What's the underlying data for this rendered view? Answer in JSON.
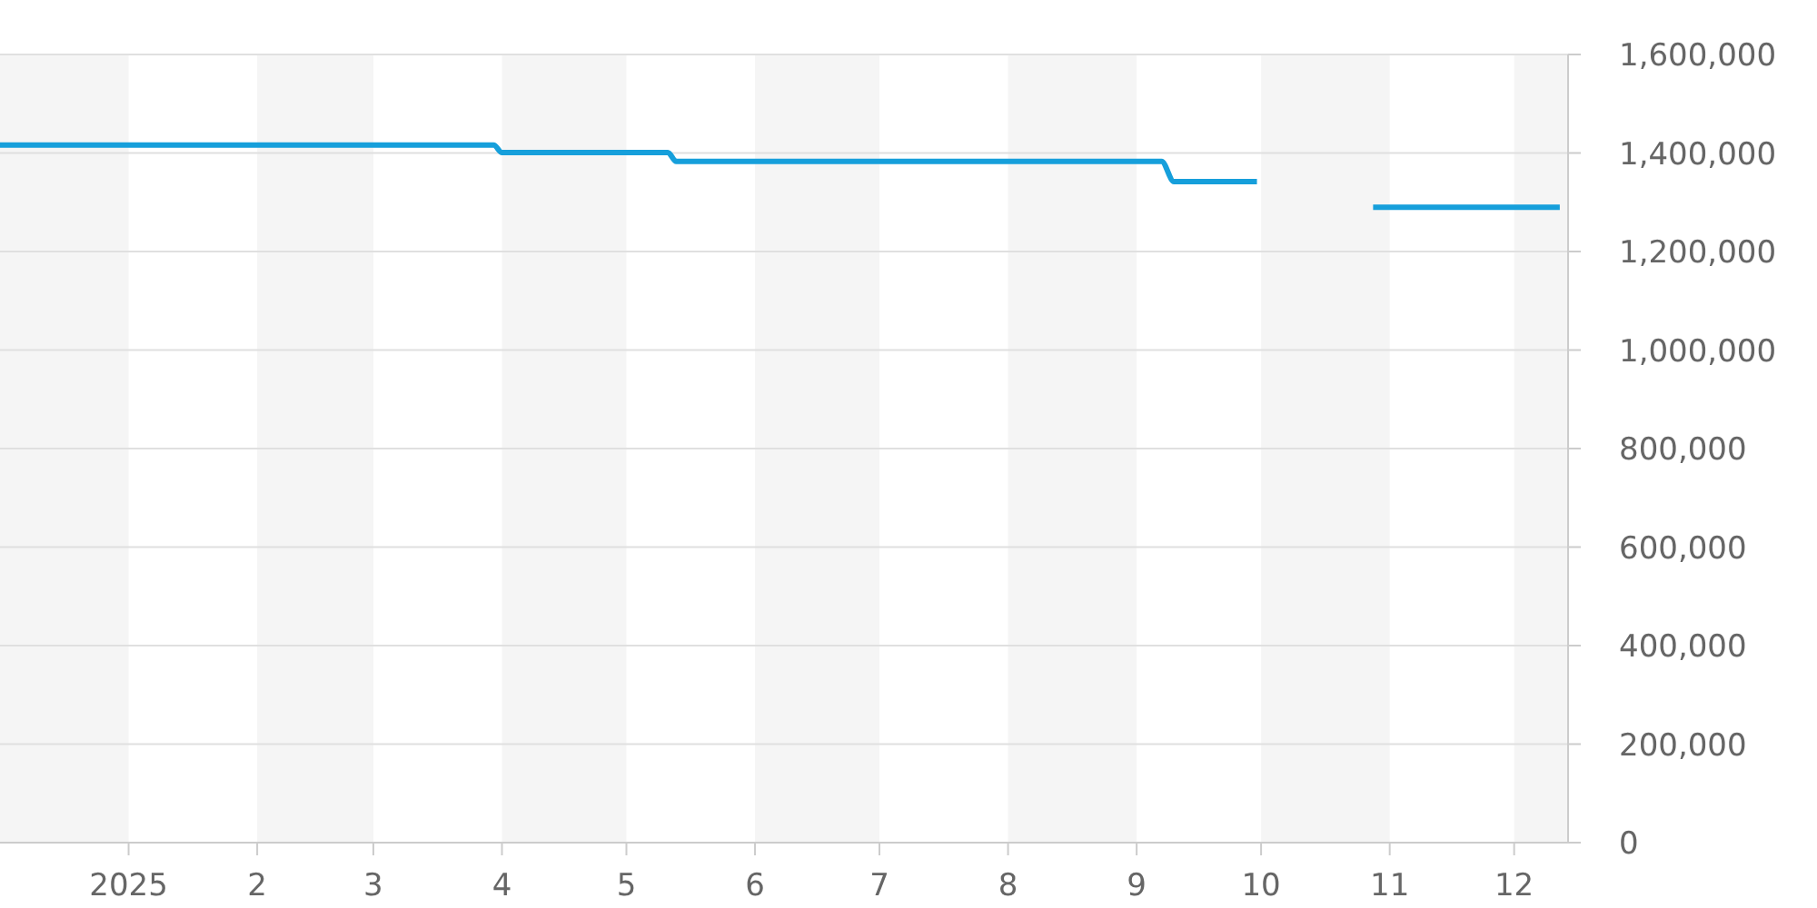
{
  "chart_data": {
    "type": "line",
    "x": [
      "2024-12-01",
      "2025-03-30",
      "2025-04-01",
      "2025-05-11",
      "2025-05-13",
      "2025-09-07",
      "2025-09-10",
      "2025-09-30",
      "2025-10-15",
      "2025-10-28",
      "2025-12-12"
    ],
    "series": [
      {
        "color": "#169fdb",
        "values": [
          1416000,
          1416000,
          1401000,
          1401000,
          1383000,
          1383000,
          1342000,
          1342000,
          null,
          1290000,
          1290000
        ]
      }
    ],
    "xlim": [
      "2024-12-01",
      "2025-12-14"
    ],
    "xticks": [
      {
        "value": "2025-01-01",
        "label": "2025"
      },
      {
        "value": "2025-02-01",
        "label": "2"
      },
      {
        "value": "2025-03-01",
        "label": "3"
      },
      {
        "value": "2025-04-01",
        "label": "4"
      },
      {
        "value": "2025-05-01",
        "label": "5"
      },
      {
        "value": "2025-06-01",
        "label": "6"
      },
      {
        "value": "2025-07-01",
        "label": "7"
      },
      {
        "value": "2025-08-01",
        "label": "8"
      },
      {
        "value": "2025-09-01",
        "label": "9"
      },
      {
        "value": "2025-10-01",
        "label": "10"
      },
      {
        "value": "2025-11-01",
        "label": "11"
      },
      {
        "value": "2025-12-01",
        "label": "12"
      }
    ],
    "ylim": [
      0,
      1600000
    ],
    "yticks": [
      {
        "value": 0,
        "label": "0"
      },
      {
        "value": 200000,
        "label": "200,000"
      },
      {
        "value": 400000,
        "label": "400,000"
      },
      {
        "value": 600000,
        "label": "600,000"
      },
      {
        "value": 800000,
        "label": "800,000"
      },
      {
        "value": 1000000,
        "label": "1,000,000"
      },
      {
        "value": 1200000,
        "label": "1,200,000"
      },
      {
        "value": 1400000,
        "label": "1,400,000"
      },
      {
        "value": 1600000,
        "label": "1,600,000"
      }
    ],
    "grid": "y",
    "marker": "none",
    "line_style": "solid",
    "bands": [
      {
        "axis": "x",
        "from": "2024-12-01",
        "to": "2025-01-01",
        "color": "#f5f5f5"
      },
      {
        "axis": "x",
        "from": "2025-02-01",
        "to": "2025-03-01",
        "color": "#f5f5f5"
      },
      {
        "axis": "x",
        "from": "2025-04-01",
        "to": "2025-05-01",
        "color": "#f5f5f5"
      },
      {
        "axis": "x",
        "from": "2025-06-01",
        "to": "2025-07-01",
        "color": "#f5f5f5"
      },
      {
        "axis": "x",
        "from": "2025-08-01",
        "to": "2025-09-01",
        "color": "#f5f5f5"
      },
      {
        "axis": "x",
        "from": "2025-10-01",
        "to": "2025-11-01",
        "color": "#f5f5f5"
      },
      {
        "axis": "x",
        "from": "2025-12-01",
        "to": "2025-12-14",
        "color": "#f5f5f5"
      }
    ]
  }
}
